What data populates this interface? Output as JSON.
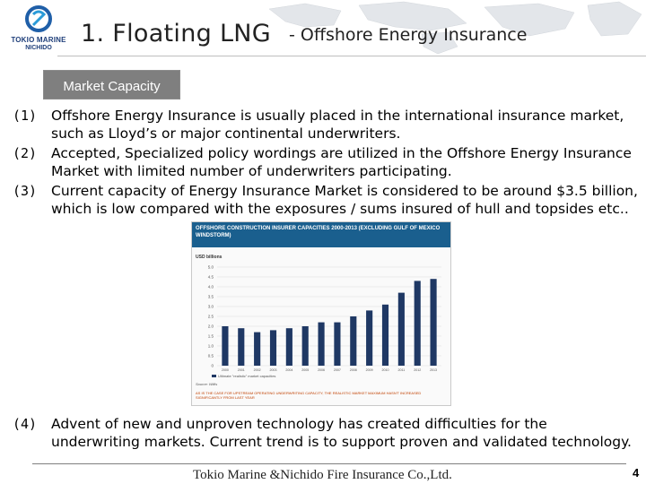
{
  "header": {
    "logo_line1": "TOKIO MARINE",
    "logo_line2": "NICHIDO",
    "title": "1. Floating LNG",
    "subtitle": "- Offshore Energy Insurance"
  },
  "tab": {
    "label": "Market Capacity"
  },
  "items": [
    {
      "num": "(1)",
      "text": "Offshore Energy Insurance is usually placed in the international insurance market, such as Lloyd’s or major continental underwriters."
    },
    {
      "num": "(2)",
      "text": "Accepted, Specialized policy wordings are utilized in the Offshore Energy Insurance Market with limited number of underwriters participating."
    },
    {
      "num": "(3)",
      "text": "Current capacity of Energy Insurance Market is considered to be around $3.5 billion, which is low compared with the exposures / sums insured of hull and topsides etc.."
    },
    {
      "num": "(4)",
      "text": "Advent of new and unproven technology has created difficulties for the underwriting markets.  Current trend is to support proven and validated technology."
    }
  ],
  "chart_data": {
    "type": "bar",
    "title": "OFFSHORE CONSTRUCTION INSURER CAPACITIES 2000-2013 (EXCLUDING GULF OF MEXICO WINDSTORM)",
    "ylabel": "USD billions",
    "categories": [
      "2000",
      "2001",
      "2002",
      "2003",
      "2004",
      "2005",
      "2006",
      "2007",
      "2008",
      "2009",
      "2010",
      "2011",
      "2012",
      "2013"
    ],
    "series": [
      {
        "name": "Ultimate \"realistic\" market capacities",
        "values": [
          2.0,
          1.9,
          1.7,
          1.8,
          1.9,
          2.0,
          2.2,
          2.2,
          2.5,
          2.8,
          3.1,
          3.7,
          4.3,
          4.4
        ]
      }
    ],
    "y_ticks": [
      "0",
      "0.5",
      "1.0",
      "1.5",
      "2.0",
      "2.5",
      "3.0",
      "3.5",
      "4.0",
      "4.5",
      "5.0"
    ],
    "ylim": [
      0,
      5.0
    ],
    "source": "Source: Willis",
    "note": "AS IS THE CASE FOR UPSTREAM OPERATING UNDERWRITING CAPACITY, THE REALISTIC MARKET MAXIMUM HASN'T INCREASED SIGNIFICANTLY FROM LAST YEAR",
    "colors": {
      "header": "#1a5f8e",
      "bar": "#1f3864",
      "note": "#c04000"
    }
  },
  "footer": {
    "company": "Tokio Marine &Nichido Fire Insurance Co.,Ltd.",
    "page": "4"
  }
}
